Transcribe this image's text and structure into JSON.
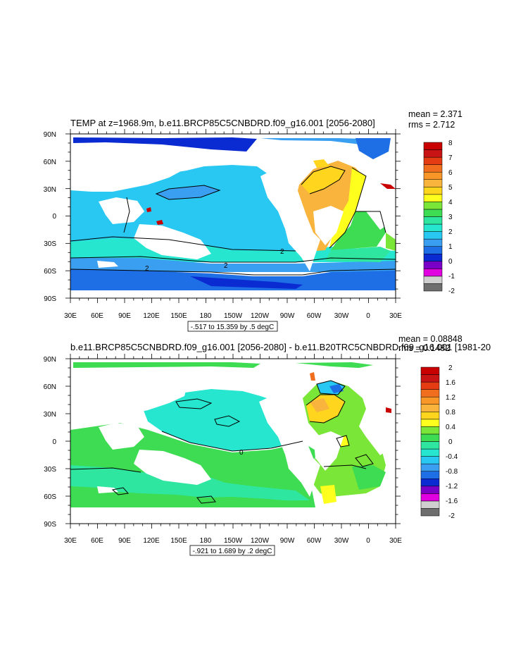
{
  "colors": {
    "temp_levels": [
      "#6e6e6e",
      "#cfcfcf",
      "#e000e0",
      "#7a00c8",
      "#0a2ad2",
      "#1e6ee6",
      "#3a9ff0",
      "#29c8f2",
      "#27e6d0",
      "#2ee6a0",
      "#3ddc52",
      "#7ae638",
      "#ffff1e",
      "#ffd51e",
      "#f8b43c",
      "#f89628",
      "#f06e1e",
      "#e63c14",
      "#c81414",
      "#c80000"
    ],
    "land": "#ffffff",
    "contour": "#000000"
  },
  "panels": [
    {
      "title": "TEMP at z=1968.9m, b.e11.BRCP85C5CNBDRD.f09_g16.001 [2056-2080]",
      "mean": "mean = 2.371",
      "rms": "rms = 2.712",
      "info": "-.517 to 15.359 by .5 degC",
      "contour_labels": [
        "2",
        "2",
        "2"
      ],
      "colorbar_labels": [
        "8",
        "7",
        "6",
        "5",
        "4",
        "3",
        "2",
        "1",
        "0",
        "-1",
        "-2"
      ],
      "lat_labels": [
        "90N",
        "60N",
        "30N",
        "0",
        "30S",
        "60S",
        "90S"
      ],
      "lon_labels": [
        "30E",
        "60E",
        "90E",
        "120E",
        "150E",
        "180",
        "150W",
        "120W",
        "90W",
        "60W",
        "30W",
        "0",
        "30E"
      ],
      "chart_data": {
        "type": "heatmap",
        "variable": "TEMP",
        "units": "degC",
        "depth_m": 1968.9,
        "contour_min": -0.517,
        "contour_max": 15.359,
        "contour_interval": 0.5,
        "mean": 2.371,
        "rms": 2.712,
        "colorbar_range": [
          -2,
          8
        ],
        "lat_range": [
          -90,
          90
        ],
        "lon_range": [
          30,
          390
        ]
      }
    },
    {
      "title": "b.e11.BRCP85C5CNBDRD.f09_g16.001 [2056-2080] - b.e11.B20TRC5CNBDRD.f09_g16.001 [1981-20",
      "mean": "mean = 0.08848",
      "rms": "rms = 0.1482",
      "info": "-.921 to 1.689 by .2 degC",
      "contour_labels": [
        "0"
      ],
      "colorbar_labels": [
        "2",
        "1.6",
        "1.2",
        "0.8",
        "0.4",
        "0",
        "-0.4",
        "-0.8",
        "-1.2",
        "-1.6",
        "-2"
      ],
      "lat_labels": [
        "90N",
        "60N",
        "30N",
        "0",
        "30S",
        "60S",
        "90S"
      ],
      "lon_labels": [
        "30E",
        "60E",
        "90E",
        "120E",
        "150E",
        "180",
        "150W",
        "120W",
        "90W",
        "60W",
        "30W",
        "0",
        "30E"
      ],
      "chart_data": {
        "type": "heatmap",
        "variable": "TEMP difference",
        "units": "degC",
        "contour_min": -0.921,
        "contour_max": 1.689,
        "contour_interval": 0.2,
        "mean": 0.08848,
        "rms": 0.1482,
        "colorbar_range": [
          -2,
          2
        ],
        "lat_range": [
          -90,
          90
        ],
        "lon_range": [
          30,
          390
        ]
      }
    }
  ]
}
